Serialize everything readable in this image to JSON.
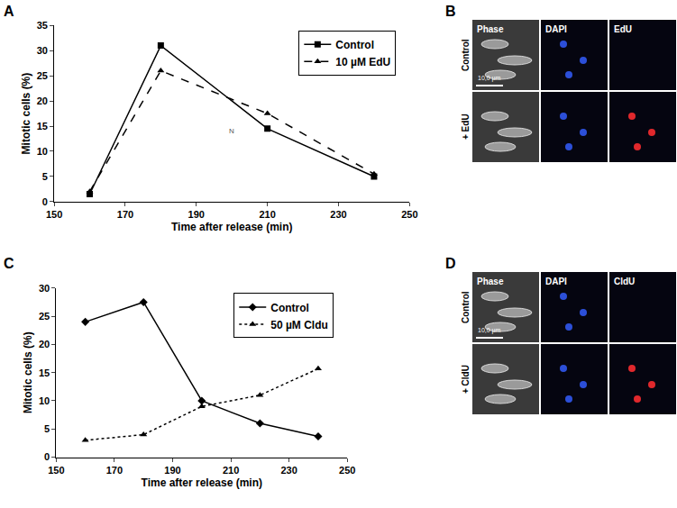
{
  "panel_labels": [
    "A",
    "B",
    "C",
    "D"
  ],
  "chart_data": [
    {
      "type": "line",
      "x_label": "Time after release (min)",
      "y_label": "Mitotic cells (%)",
      "x": [
        160,
        180,
        210,
        240
      ],
      "series": [
        {
          "name": "Control",
          "color": "#000000",
          "marker": "square",
          "line_style": "solid",
          "values": [
            1.5,
            31,
            14.5,
            5
          ]
        },
        {
          "name": "10 µM EdU",
          "color": "#000000",
          "marker": "triangle",
          "line_style": "dash",
          "values": [
            2,
            26,
            17.5,
            5.5
          ]
        }
      ],
      "xlim": [
        150,
        250
      ],
      "xticks": [
        150,
        170,
        190,
        210,
        230,
        250
      ],
      "ylim": [
        0,
        35
      ],
      "yticks": [
        0,
        5,
        10,
        15,
        20,
        25,
        30,
        35
      ],
      "grid": false,
      "legend": "upper right",
      "annotations": [
        {
          "text": "N",
          "x": 200,
          "y": 14
        }
      ]
    },
    {
      "type": "line",
      "x_label": "Time after release (min)",
      "y_label": "Mitotic cells (%)",
      "x": [
        160,
        180,
        200,
        220,
        240
      ],
      "series": [
        {
          "name": "Control",
          "color": "#000000",
          "marker": "diamond",
          "line_style": "solid",
          "values": [
            24,
            27.5,
            10,
            6,
            3.7
          ]
        },
        {
          "name": "50 µM Cldu",
          "color": "#000000",
          "marker": "triangle",
          "line_style": "dot",
          "values": [
            3,
            4,
            9,
            11,
            15.7
          ]
        }
      ],
      "xlim": [
        150,
        250
      ],
      "xticks": [
        150,
        170,
        190,
        210,
        230,
        250
      ],
      "ylim": [
        0,
        30
      ],
      "yticks": [
        0,
        5,
        10,
        15,
        20,
        25,
        30
      ],
      "grid": false,
      "legend": "upper right"
    }
  ],
  "image_panels": [
    {
      "columns": [
        "Phase",
        "DAPI",
        "EdU"
      ],
      "rows": [
        "Control",
        "+ EdU"
      ],
      "scale_bar": "10,0 µm"
    },
    {
      "columns": [
        "Phase",
        "DAPI",
        "CldU"
      ],
      "rows": [
        "Control",
        "+ CldU"
      ],
      "scale_bar": "10,0 µm"
    }
  ]
}
